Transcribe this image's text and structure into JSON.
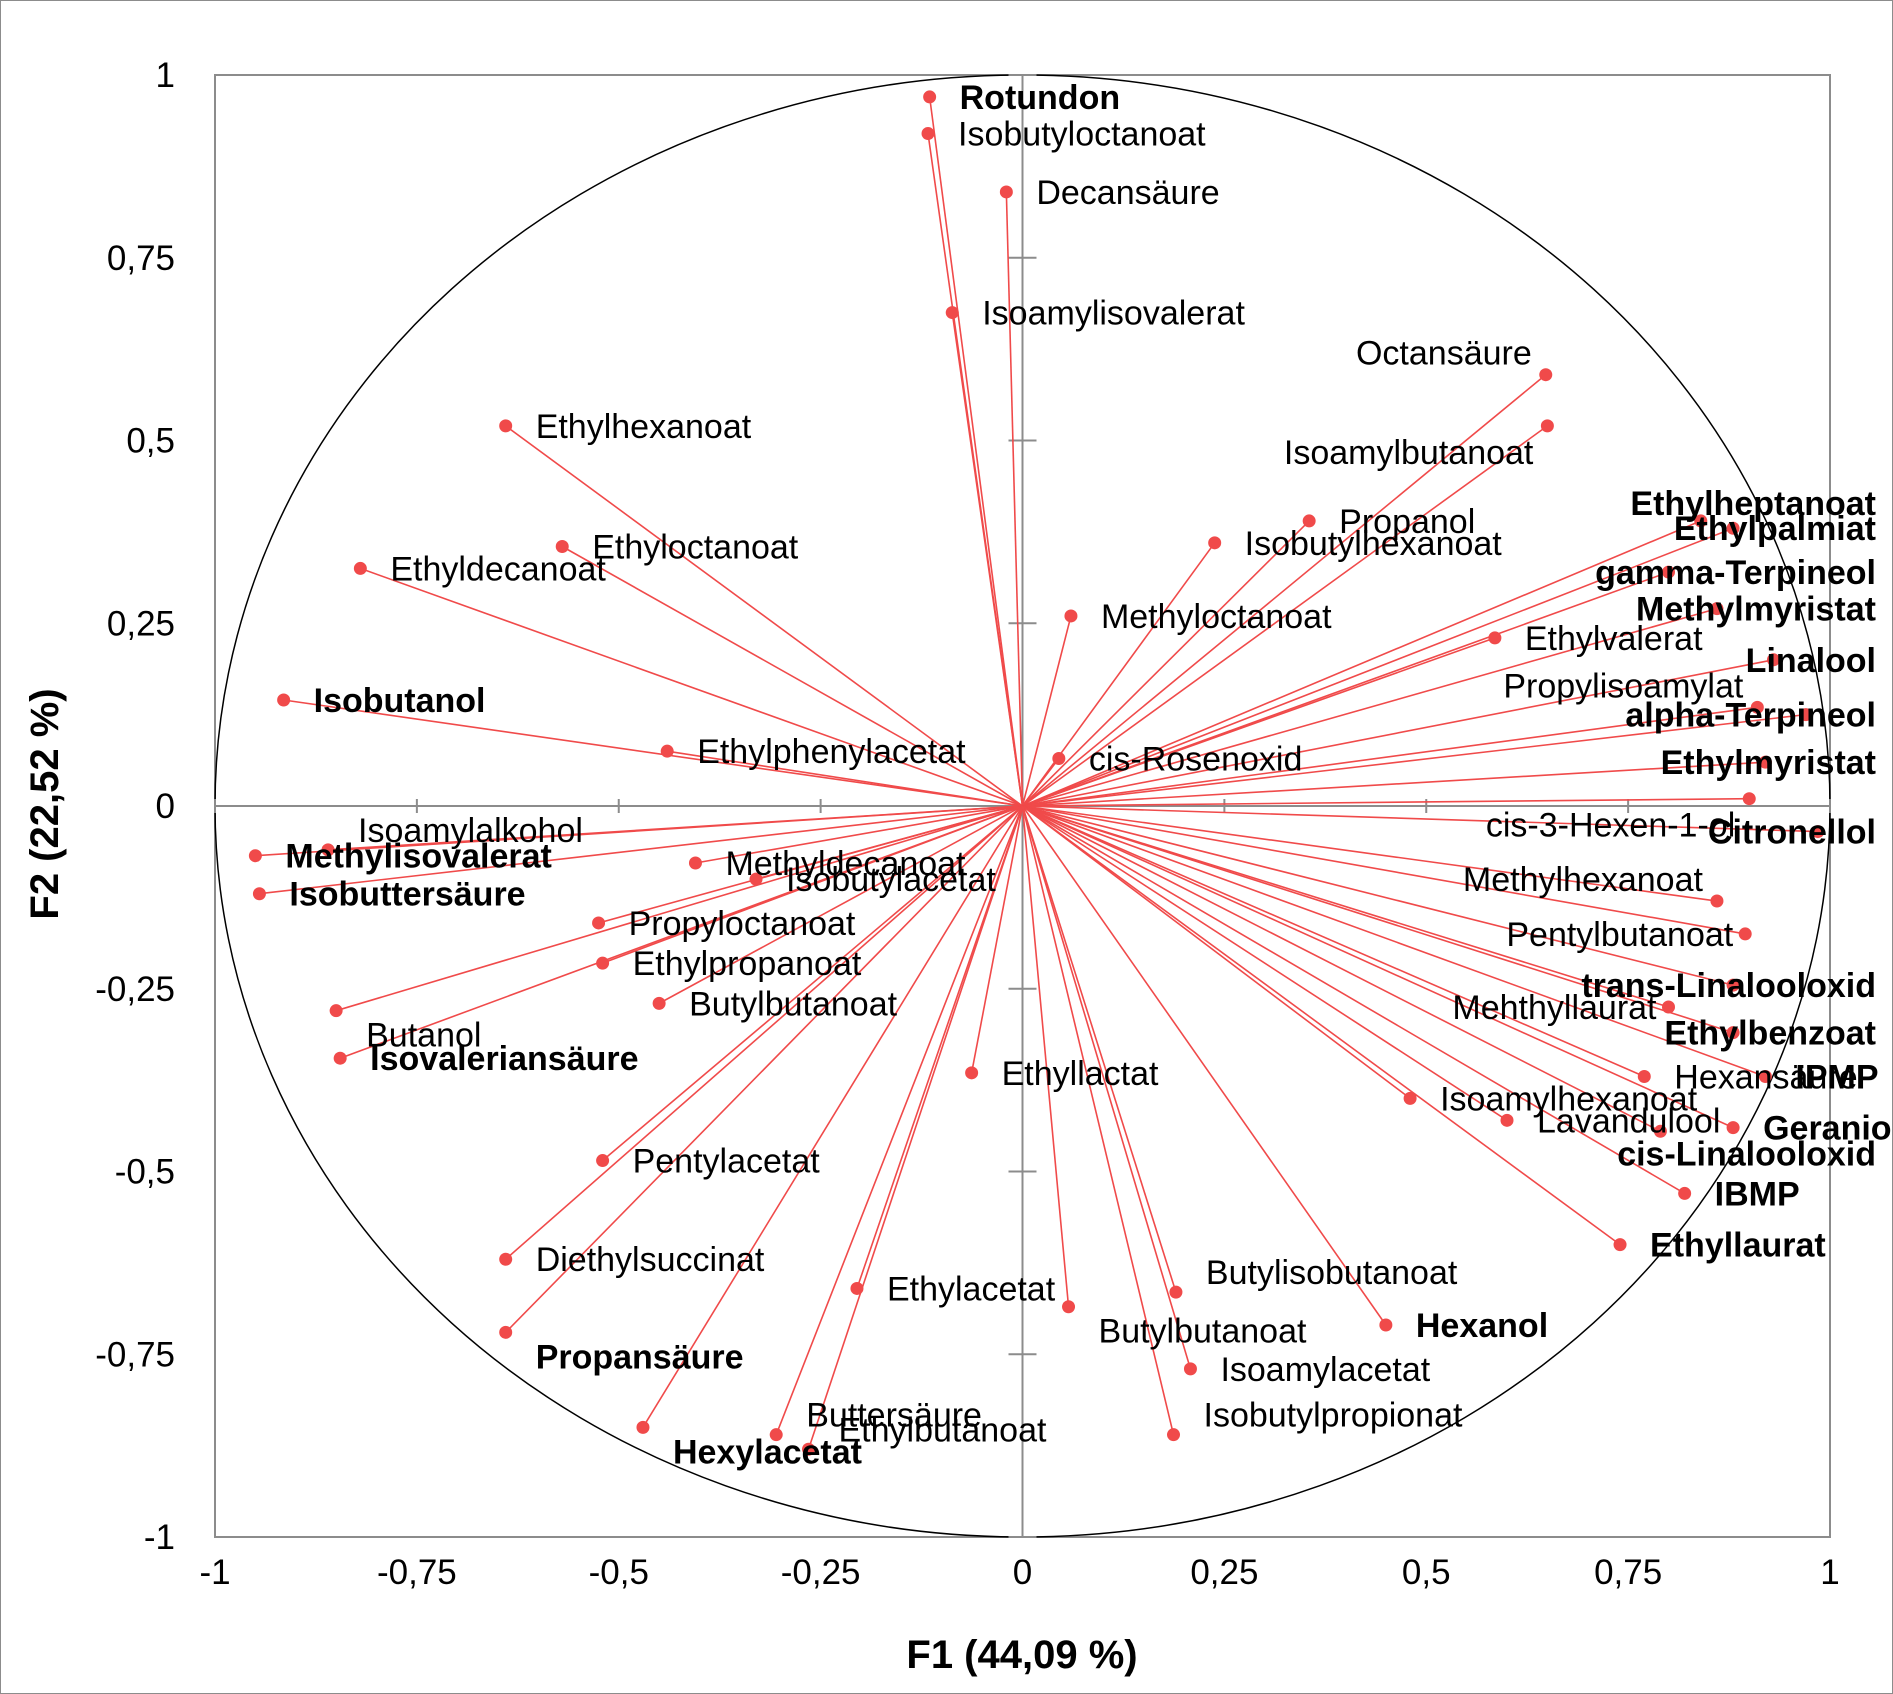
{
  "chart_data": {
    "type": "scatter",
    "subtype": "pca-correlation-circle",
    "title": "",
    "xlabel": "F1 (44,09 %)",
    "ylabel": "F2 (22,52 %)",
    "xlim": [
      -1,
      1
    ],
    "ylim": [
      -1,
      1
    ],
    "x_ticks": [
      "-1",
      "-0,75",
      "-0,5",
      "-0,25",
      "0",
      "0,25",
      "0,5",
      "0,75",
      "1"
    ],
    "y_ticks": [
      "1",
      "0,75",
      "0,5",
      "0,25",
      "0",
      "-0,25",
      "-0,5",
      "-0,75",
      "-1"
    ],
    "colors": {
      "vector": "#f04a4a",
      "point": "#f04a4a",
      "axis": "#8c8c8c",
      "circle": "#000000"
    },
    "points": [
      {
        "name": "Rotundon",
        "x": -0.115,
        "y": 0.97,
        "bold": true,
        "label_pos": "right"
      },
      {
        "name": "Isobutyloctanoat",
        "x": -0.117,
        "y": 0.92,
        "bold": false,
        "label_pos": "right"
      },
      {
        "name": "Decansäure",
        "x": -0.02,
        "y": 0.84,
        "bold": false,
        "label_pos": "right"
      },
      {
        "name": "Isoamylisovalerat",
        "x": -0.087,
        "y": 0.675,
        "bold": false,
        "label_pos": "right"
      },
      {
        "name": "Octansäure",
        "x": 0.648,
        "y": 0.59,
        "bold": false,
        "label_pos": "left-above"
      },
      {
        "name": "Isoamylbutanoat",
        "x": 0.65,
        "y": 0.52,
        "bold": false,
        "label_pos": "left-below"
      },
      {
        "name": "Ethylhexanoat",
        "x": -0.64,
        "y": 0.52,
        "bold": false,
        "label_pos": "right"
      },
      {
        "name": "Ethylheptanoat",
        "x": 0.84,
        "y": 0.39,
        "bold": true,
        "label_pos": "end-above"
      },
      {
        "name": "Ethylpalmiat",
        "x": 0.88,
        "y": 0.38,
        "bold": true,
        "label_pos": "end"
      },
      {
        "name": "Propanol",
        "x": 0.355,
        "y": 0.39,
        "bold": false,
        "label_pos": "right"
      },
      {
        "name": "Isobutylhexanoat",
        "x": 0.238,
        "y": 0.36,
        "bold": false,
        "label_pos": "right"
      },
      {
        "name": "Ethyloctanoat",
        "x": -0.57,
        "y": 0.355,
        "bold": false,
        "label_pos": "right"
      },
      {
        "name": "Ethyldecanoat",
        "x": -0.82,
        "y": 0.325,
        "bold": false,
        "label_pos": "right"
      },
      {
        "name": "gamma-Terpineol",
        "x": 0.8,
        "y": 0.32,
        "bold": true,
        "label_pos": "end"
      },
      {
        "name": "Methylmyristat",
        "x": 0.86,
        "y": 0.27,
        "bold": true,
        "label_pos": "end"
      },
      {
        "name": "Methyloctanoat",
        "x": 0.06,
        "y": 0.26,
        "bold": false,
        "label_pos": "right"
      },
      {
        "name": "Ethylvalerat",
        "x": 0.585,
        "y": 0.23,
        "bold": false,
        "label_pos": "right"
      },
      {
        "name": "Linalool",
        "x": 0.93,
        "y": 0.2,
        "bold": true,
        "label_pos": "end"
      },
      {
        "name": "Isobutanol",
        "x": -0.915,
        "y": 0.145,
        "bold": true,
        "label_pos": "right"
      },
      {
        "name": "Propylisoamylat",
        "x": 0.91,
        "y": 0.135,
        "bold": false,
        "label_pos": "left-above"
      },
      {
        "name": "alpha-Terpineol",
        "x": 0.97,
        "y": 0.125,
        "bold": true,
        "label_pos": "end"
      },
      {
        "name": "Ethylphenylacetat",
        "x": -0.44,
        "y": 0.075,
        "bold": false,
        "label_pos": "right"
      },
      {
        "name": "cis-Rosenoxid",
        "x": 0.045,
        "y": 0.065,
        "bold": false,
        "label_pos": "right"
      },
      {
        "name": "Ethylmyristat",
        "x": 0.92,
        "y": 0.06,
        "bold": true,
        "label_pos": "end"
      },
      {
        "name": "cis-3-Hexen-1-ol",
        "x": 0.9,
        "y": 0.01,
        "bold": false,
        "label_pos": "left-below"
      },
      {
        "name": "Citronellol",
        "x": 0.985,
        "y": -0.035,
        "bold": true,
        "label_pos": "end"
      },
      {
        "name": "Isoamylalkohol",
        "x": -0.86,
        "y": -0.06,
        "bold": false,
        "label_pos": "right-above"
      },
      {
        "name": "Methylisovalerat",
        "x": -0.95,
        "y": -0.068,
        "bold": true,
        "label_pos": "right"
      },
      {
        "name": "Methyldecanoat",
        "x": -0.405,
        "y": -0.078,
        "bold": false,
        "label_pos": "right"
      },
      {
        "name": "Isobutylacetat",
        "x": -0.33,
        "y": -0.1,
        "bold": false,
        "label_pos": "right"
      },
      {
        "name": "Isobuttersäure",
        "x": -0.945,
        "y": -0.12,
        "bold": true,
        "label_pos": "right"
      },
      {
        "name": "Methylhexanoat",
        "x": 0.86,
        "y": -0.13,
        "bold": false,
        "label_pos": "left-above"
      },
      {
        "name": "Propyloctanoat",
        "x": -0.525,
        "y": -0.16,
        "bold": false,
        "label_pos": "right"
      },
      {
        "name": "Pentylbutanoat",
        "x": 0.895,
        "y": -0.175,
        "bold": false,
        "label_pos": "left"
      },
      {
        "name": "Ethylpropanoat",
        "x": -0.52,
        "y": -0.215,
        "bold": false,
        "label_pos": "right"
      },
      {
        "name": "trans-Linalooloxid",
        "x": 0.88,
        "y": -0.245,
        "bold": true,
        "label_pos": "end"
      },
      {
        "name": "Butylbutanoat",
        "x": -0.45,
        "y": -0.27,
        "bold": false,
        "label_pos": "right"
      },
      {
        "name": "Mehthyllaurat",
        "x": 0.8,
        "y": -0.275,
        "bold": false,
        "label_pos": "left"
      },
      {
        "name": "Butanol",
        "x": -0.85,
        "y": -0.28,
        "bold": false,
        "label_pos": "right-below"
      },
      {
        "name": "Ethylbenzoat",
        "x": 0.88,
        "y": -0.31,
        "bold": true,
        "label_pos": "end"
      },
      {
        "name": "Isovaleriansäure",
        "x": -0.845,
        "y": -0.345,
        "bold": true,
        "label_pos": "right"
      },
      {
        "name": "Ethyllactat",
        "x": -0.063,
        "y": -0.365,
        "bold": false,
        "label_pos": "right"
      },
      {
        "name": "Hexansäure",
        "x": 0.77,
        "y": -0.37,
        "bold": false,
        "label_pos": "right"
      },
      {
        "name": "IPMP",
        "x": 0.92,
        "y": -0.37,
        "bold": true,
        "label_pos": "right"
      },
      {
        "name": "Isoamylhexanoat",
        "x": 0.48,
        "y": -0.4,
        "bold": false,
        "label_pos": "right"
      },
      {
        "name": "Lavandulool",
        "x": 0.6,
        "y": -0.43,
        "bold": false,
        "label_pos": "right"
      },
      {
        "name": "Geraniol",
        "x": 0.88,
        "y": -0.44,
        "bold": true,
        "label_pos": "right"
      },
      {
        "name": "Pentylacetat",
        "x": -0.52,
        "y": -0.485,
        "bold": false,
        "label_pos": "right"
      },
      {
        "name": "cis-Linalooloxid",
        "x": 0.79,
        "y": -0.445,
        "bold": true,
        "label_pos": "end-below"
      },
      {
        "name": "IBMP",
        "x": 0.82,
        "y": -0.53,
        "bold": true,
        "label_pos": "right"
      },
      {
        "name": "Ethyllaurat",
        "x": 0.74,
        "y": -0.6,
        "bold": true,
        "label_pos": "right"
      },
      {
        "name": "Diethylsuccinat",
        "x": -0.64,
        "y": -0.62,
        "bold": false,
        "label_pos": "right"
      },
      {
        "name": "Butylisobutanoat",
        "x": 0.19,
        "y": -0.665,
        "bold": false,
        "label_pos": "right-above"
      },
      {
        "name": "Ethylacetat",
        "x": -0.205,
        "y": -0.66,
        "bold": false,
        "label_pos": "right"
      },
      {
        "name": "Butylbutanoat",
        "x": 0.057,
        "y": -0.685,
        "bold": false,
        "label_pos": "right-below"
      },
      {
        "name": "Hexanol",
        "x": 0.45,
        "y": -0.71,
        "bold": true,
        "label_pos": "right"
      },
      {
        "name": "Propansäure",
        "x": -0.64,
        "y": -0.72,
        "bold": true,
        "label_pos": "right-below"
      },
      {
        "name": "Isoamylacetat",
        "x": 0.208,
        "y": -0.77,
        "bold": false,
        "label_pos": "right"
      },
      {
        "name": "Buttersäure",
        "x": -0.305,
        "y": -0.86,
        "bold": false,
        "label_pos": "right-above"
      },
      {
        "name": "Isobutylpropionat",
        "x": 0.187,
        "y": -0.86,
        "bold": false,
        "label_pos": "right-above"
      },
      {
        "name": "Ethylbutanoat",
        "x": -0.265,
        "y": -0.88,
        "bold": false,
        "label_pos": "right-above"
      },
      {
        "name": "Hexylacetat",
        "x": -0.47,
        "y": -0.85,
        "bold": true,
        "label_pos": "right-below"
      }
    ]
  }
}
